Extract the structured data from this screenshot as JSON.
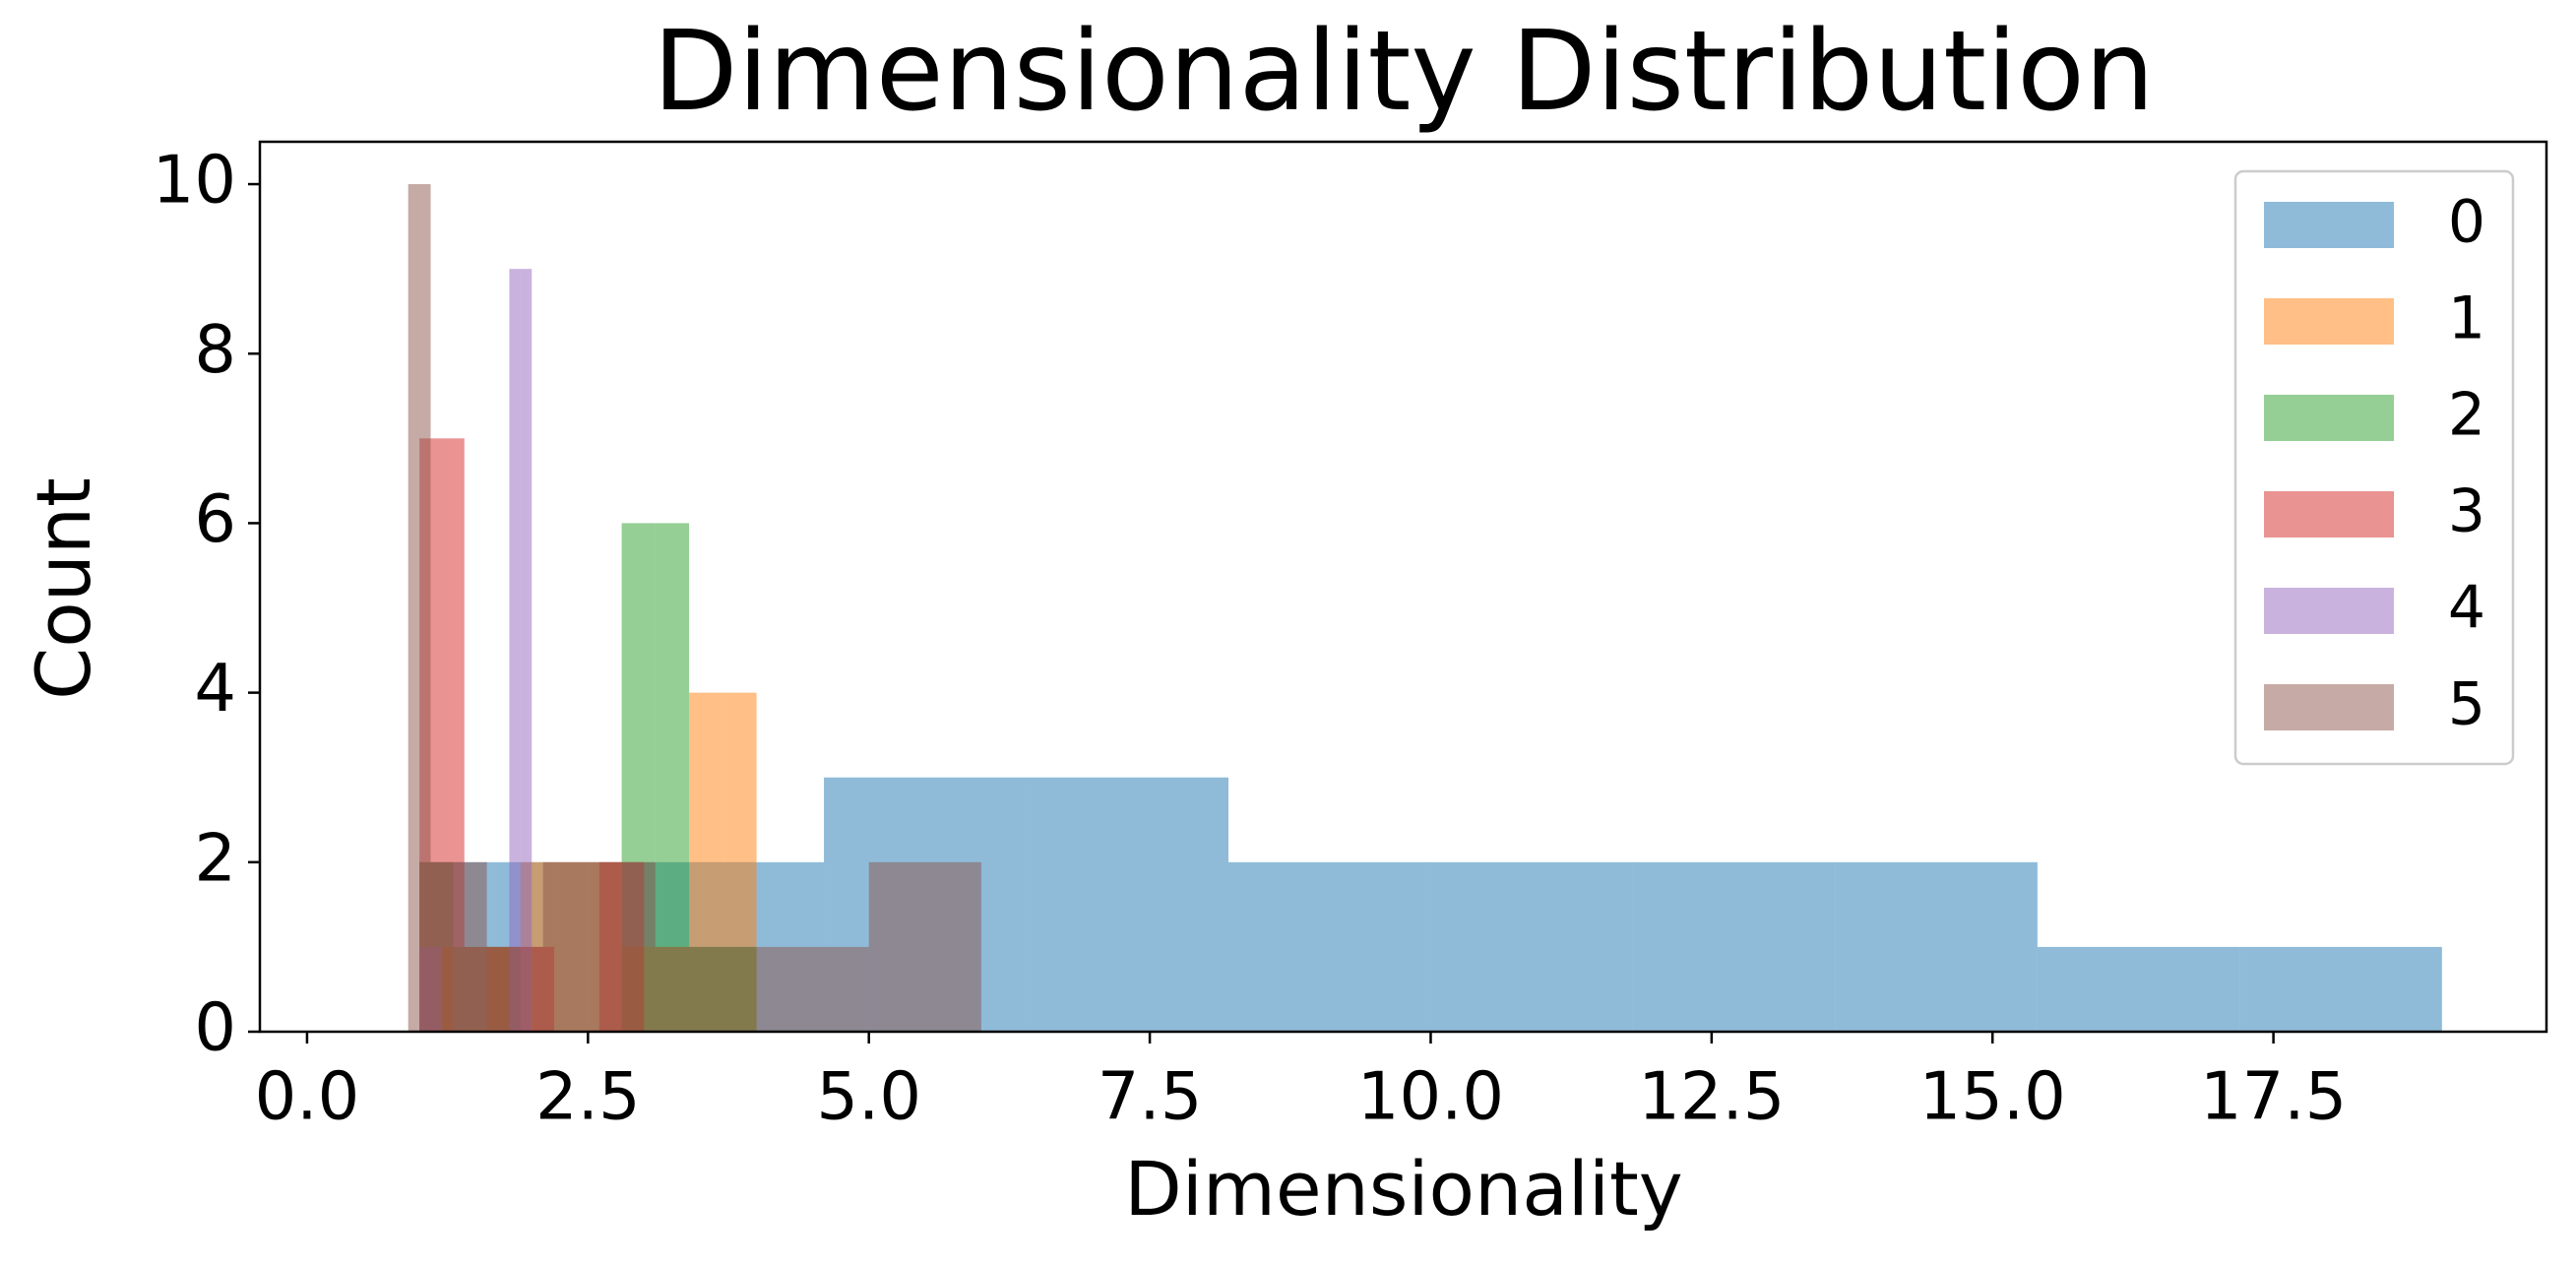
{
  "chart_data": {
    "type": "histogram",
    "title": "Dimensionality Distribution",
    "x_label": "Dimensionality",
    "y_label": "Count",
    "xlim": [
      -0.42,
      19.93
    ],
    "ylim": [
      0,
      10.5
    ],
    "xticks": [
      {
        "value": 0,
        "label": "0.0"
      },
      2.5,
      {
        "value": 5,
        "label": "5.0"
      },
      7.5,
      {
        "value": 10,
        "label": "10.0"
      },
      12.5,
      {
        "value": 15,
        "label": "15.0"
      },
      17.5
    ],
    "yticks": [
      0,
      2,
      4,
      6,
      8,
      10
    ],
    "opacity": 0.5,
    "legend": "upper right",
    "series": [
      {
        "name": "0",
        "color": "#1f77b4",
        "bins": [
          1,
          2.8,
          4.6,
          6.4,
          8.2,
          10,
          11.8,
          13.6,
          15.4,
          17.2,
          19
        ],
        "values": [
          2,
          2,
          3,
          3,
          2,
          2,
          2,
          2,
          1,
          1
        ]
      },
      {
        "name": "1",
        "color": "#ff7f0e",
        "bins": [
          1,
          1.3,
          1.6,
          1.9,
          2.2,
          2.5,
          2.8,
          3.1,
          3.4,
          3.7,
          4
        ],
        "values": [
          1,
          0,
          1,
          2,
          2,
          2,
          1,
          1,
          4,
          4
        ]
      },
      {
        "name": "2",
        "color": "#2ca02c",
        "bins": [
          1,
          1.3,
          1.6,
          1.9,
          2.2,
          2.5,
          2.8,
          3.1,
          3.4,
          3.7,
          4
        ],
        "values": [
          2,
          1,
          1,
          0,
          0,
          0,
          6,
          6,
          1,
          1
        ]
      },
      {
        "name": "3",
        "color": "#d62728",
        "bins": [
          1,
          1.2,
          1.4,
          1.6,
          1.8,
          2,
          2.2,
          2.4,
          2.6,
          2.8,
          3
        ],
        "values": [
          7,
          7,
          1,
          1,
          1,
          1,
          0,
          0,
          2,
          2
        ]
      },
      {
        "name": "4",
        "color": "#9467bd",
        "bins": [
          1,
          1.1,
          1.2,
          1.3,
          1.4,
          1.5,
          1.6,
          1.7,
          1.8,
          1.9,
          2
        ],
        "values": [
          1,
          1,
          0,
          0,
          0,
          0,
          0,
          0,
          9,
          9
        ]
      },
      {
        "name": "5",
        "color": "#8c564b",
        "bins": [
          0.9,
          1.1,
          1.6,
          2.1,
          2.6,
          3.1,
          3.6,
          4.1,
          4.6,
          5,
          6
        ],
        "values": [
          10,
          2,
          1,
          2,
          2,
          1,
          1,
          1,
          1,
          2
        ]
      }
    ]
  }
}
